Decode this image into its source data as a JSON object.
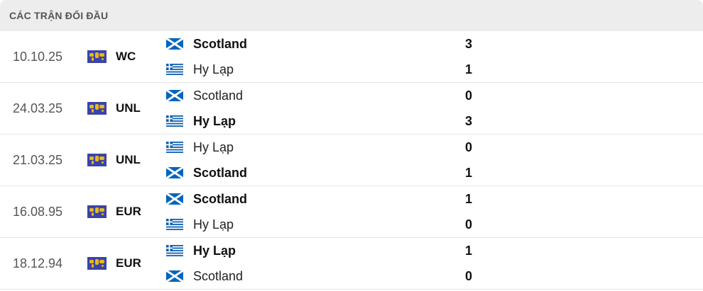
{
  "header": {
    "title": "CÁC TRẬN ĐỐI ĐẦU"
  },
  "colors": {
    "header_bg": "#ededed",
    "comp_icon_bg": "#3b43a8",
    "comp_icon_fg": "#e8b818",
    "scotland": "#0065bd",
    "greece": "#0d5eaf"
  },
  "matches": [
    {
      "date": "10.10.25",
      "competition": "WC",
      "home": {
        "name": "Scotland",
        "flag": "scotland",
        "score": "3",
        "winner": true
      },
      "away": {
        "name": "Hy Lạp",
        "flag": "greece",
        "score": "1",
        "winner": false
      }
    },
    {
      "date": "24.03.25",
      "competition": "UNL",
      "home": {
        "name": "Scotland",
        "flag": "scotland",
        "score": "0",
        "winner": false
      },
      "away": {
        "name": "Hy Lạp",
        "flag": "greece",
        "score": "3",
        "winner": true
      }
    },
    {
      "date": "21.03.25",
      "competition": "UNL",
      "home": {
        "name": "Hy Lạp",
        "flag": "greece",
        "score": "0",
        "winner": false
      },
      "away": {
        "name": "Scotland",
        "flag": "scotland",
        "score": "1",
        "winner": true
      }
    },
    {
      "date": "16.08.95",
      "competition": "EUR",
      "home": {
        "name": "Scotland",
        "flag": "scotland",
        "score": "1",
        "winner": true
      },
      "away": {
        "name": "Hy Lạp",
        "flag": "greece",
        "score": "0",
        "winner": false
      }
    },
    {
      "date": "18.12.94",
      "competition": "EUR",
      "home": {
        "name": "Hy Lạp",
        "flag": "greece",
        "score": "1",
        "winner": true
      },
      "away": {
        "name": "Scotland",
        "flag": "scotland",
        "score": "0",
        "winner": false
      }
    }
  ]
}
